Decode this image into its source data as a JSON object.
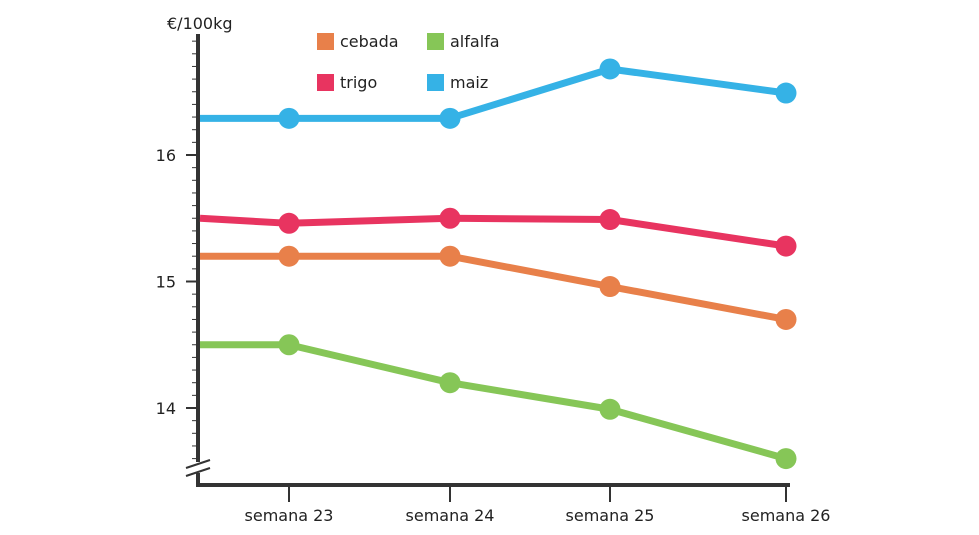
{
  "chart_data": {
    "type": "line",
    "title": "",
    "ylabel": "€/100kg",
    "xlabel": "",
    "categories": [
      "semana 23",
      "semana 24",
      "semana 25",
      "semana 26"
    ],
    "ylim": [
      13.45,
      17.0
    ],
    "yticks": [
      14,
      15,
      16
    ],
    "y_axis_break": true,
    "legend_position": "top",
    "series": [
      {
        "name": "cebada",
        "color": "#E8804A",
        "values": [
          15.2,
          15.2,
          14.96,
          14.7
        ],
        "start_value": 15.2
      },
      {
        "name": "alfalfa",
        "color": "#86C657",
        "values": [
          14.5,
          14.2,
          13.99,
          13.6
        ],
        "start_value": 14.5
      },
      {
        "name": "trigo",
        "color": "#E83460",
        "values": [
          15.46,
          15.5,
          15.49,
          15.28
        ],
        "start_value": 15.5
      },
      {
        "name": "maiz",
        "color": "#35B2E6",
        "values": [
          16.29,
          16.29,
          16.68,
          16.49
        ],
        "start_value": 16.29
      }
    ]
  }
}
